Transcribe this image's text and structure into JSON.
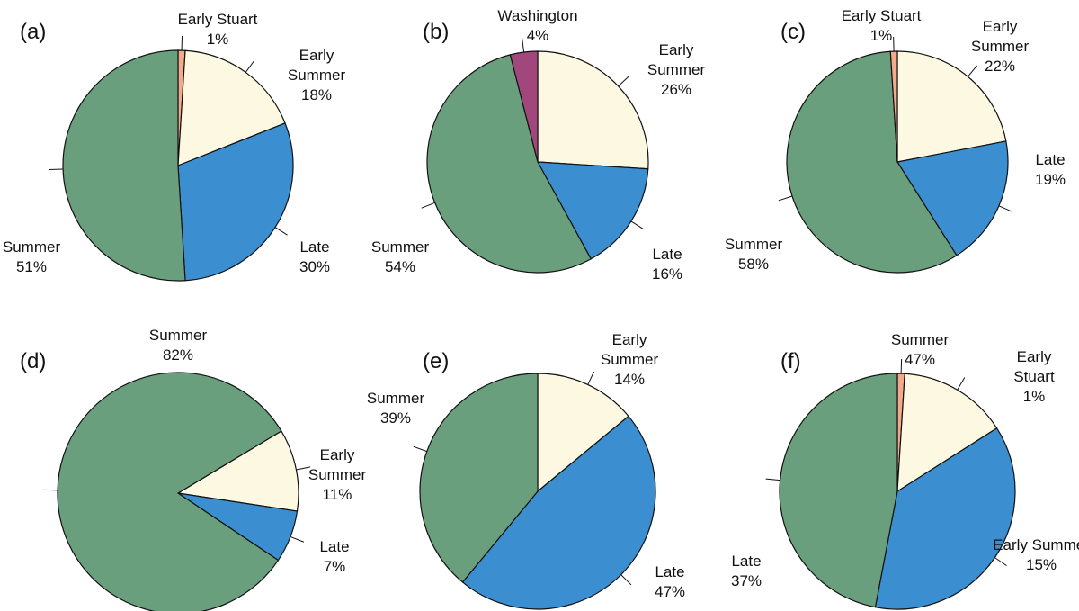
{
  "chart_data": [
    {
      "type": "pie",
      "panel": "(a)",
      "categories": [
        "Early Stuart",
        "Early Summer",
        "Late",
        "Summer"
      ],
      "values": [
        1,
        18,
        30,
        51
      ],
      "value_labels": [
        "1%",
        "18%",
        "30%",
        "51%"
      ],
      "colors": [
        "#f2aa8a",
        "#fdf8e1",
        "#3b8fd0",
        "#6a9f7d"
      ]
    },
    {
      "type": "pie",
      "panel": "(b)",
      "categories": [
        "Early Summer",
        "Late",
        "Summer",
        "Washington"
      ],
      "values": [
        26,
        16,
        54,
        4
      ],
      "value_labels": [
        "26%",
        "16%",
        "54%",
        "4%"
      ],
      "colors": [
        "#fdf8e1",
        "#3b8fd0",
        "#6a9f7d",
        "#a2477b"
      ]
    },
    {
      "type": "pie",
      "panel": "(c)",
      "categories": [
        "Early Summer",
        "Late",
        "Summer",
        "Early Stuart"
      ],
      "values": [
        22,
        19,
        58,
        1
      ],
      "value_labels": [
        "22%",
        "19%",
        "58%",
        "1%"
      ],
      "colors": [
        "#fdf8e1",
        "#3b8fd0",
        "#6a9f7d",
        "#f2aa8a"
      ]
    },
    {
      "type": "pie",
      "panel": "(d)",
      "categories": [
        "Early Summer",
        "Late",
        "Summer"
      ],
      "values": [
        11,
        7,
        82
      ],
      "value_labels": [
        "11%",
        "7%",
        "82%"
      ],
      "colors": [
        "#fdf8e1",
        "#3b8fd0",
        "#6a9f7d"
      ]
    },
    {
      "type": "pie",
      "panel": "(e)",
      "categories": [
        "Early Summer",
        "Late",
        "Summer"
      ],
      "values": [
        14,
        47,
        39
      ],
      "value_labels": [
        "14%",
        "47%",
        "39%"
      ],
      "colors": [
        "#fdf8e1",
        "#3b8fd0",
        "#6a9f7d"
      ]
    },
    {
      "type": "pie",
      "panel": "(f)",
      "categories": [
        "Early Stuart",
        "Early Summer",
        "Late",
        "Summer"
      ],
      "values": [
        1,
        15,
        37,
        47
      ],
      "value_labels": [
        "1%",
        "15%",
        "37%",
        "47%"
      ],
      "colors": [
        "#f2aa8a",
        "#fdf8e1",
        "#3b8fd0",
        "#6a9f7d"
      ]
    }
  ]
}
